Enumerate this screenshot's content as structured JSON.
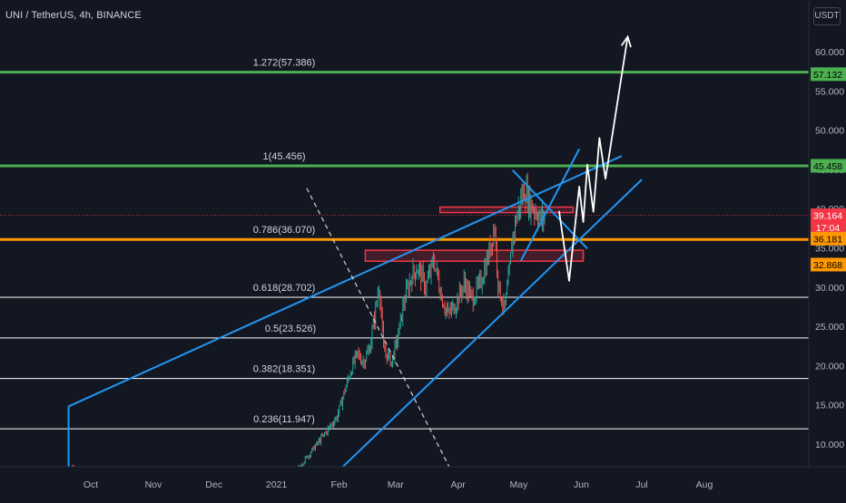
{
  "header": {
    "title": "UNI / TetherUS, 4h, BINANCE",
    "currency": "USDT"
  },
  "colors": {
    "background": "#131722",
    "text": "#d1d4dc",
    "axis_text": "#b2b5be",
    "up_candle": "#26a69a",
    "down_candle": "#ef5350",
    "trendline": "#2196f3",
    "fib_green": "#4caf50",
    "fib_orange": "#ff9800",
    "fib_white": "#ffffff",
    "zone_red": "#f23645"
  },
  "chart_data": {
    "type": "candlestick",
    "symbol": "UNI / TetherUS",
    "interval": "4h",
    "exchange": "BINANCE",
    "x_tick_labels": [
      "Oct",
      "Nov",
      "Dec",
      "2021",
      "Feb",
      "Mar",
      "Apr",
      "May",
      "Jun",
      "Jul",
      "Aug"
    ],
    "y_tick_labels": [
      "10.000",
      "15.000",
      "20.000",
      "25.000",
      "30.000",
      "35.000",
      "40.000",
      "45.000",
      "50.000",
      "55.000",
      "60.000"
    ],
    "y_ticks": [
      10,
      15,
      20,
      25,
      30,
      35,
      40,
      45,
      50,
      55,
      60
    ],
    "ylim": [
      6.4,
      63.5
    ],
    "fib_levels": [
      {
        "label": "1.272(57.386)",
        "value": 57.386,
        "color": "#4caf50"
      },
      {
        "label": "1(45.456)",
        "value": 45.456,
        "color": "#4caf50"
      },
      {
        "label": "0.786(36.070)",
        "value": 36.07,
        "color": "#ff9800"
      },
      {
        "label": "0.618(28.702)",
        "value": 28.702,
        "color": "#ffffff"
      },
      {
        "label": "0.5(23.526)",
        "value": 23.526,
        "color": "#ffffff"
      },
      {
        "label": "0.382(18.351)",
        "value": 18.351,
        "color": "#ffffff"
      },
      {
        "label": "0.236(11.947)",
        "value": 11.947,
        "color": "#ffffff"
      }
    ],
    "price_labels": [
      {
        "text": "57.132",
        "value": 57.132,
        "bg": "#4caf50",
        "fg": "#000000"
      },
      {
        "text": "45.458",
        "value": 45.458,
        "bg": "#4caf50",
        "fg": "#000000"
      },
      {
        "text": "39.164",
        "value": 39.164,
        "bg": "#f23645",
        "fg": "#ffffff"
      },
      {
        "text": "17:04",
        "value": 37.6,
        "bg": "#f23645",
        "fg": "#ffffff"
      },
      {
        "text": "36.181",
        "value": 36.181,
        "bg": "#ff9800",
        "fg": "#000000"
      },
      {
        "text": "32.868",
        "value": 32.868,
        "bg": "#ff9800",
        "fg": "#000000"
      }
    ],
    "current_price": 39.164,
    "trendline_points": [
      {
        "name": "channel-top",
        "points": [
          [
            "Sep 20",
            14.8
          ],
          [
            "Jun 21",
            46.7
          ]
        ]
      },
      {
        "name": "channel-bottom",
        "points": [
          [
            "Jan 31",
            6.4
          ],
          [
            "Jul 1",
            43.7
          ]
        ]
      },
      {
        "name": "wedge-upper",
        "points": [
          [
            "May 2",
            33.3
          ],
          [
            "May 31",
            47.6
          ]
        ]
      },
      {
        "name": "wedge-lower",
        "points": [
          [
            "Apr 28",
            44.9
          ],
          [
            "Jun 4",
            34.9
          ]
        ]
      },
      {
        "name": "vertical-start",
        "points": [
          [
            "Sep 20",
            6.4
          ],
          [
            "Sep 20",
            14.8
          ]
        ]
      }
    ],
    "dashed_line": [
      [
        "Jan 16",
        42.6
      ],
      [
        "Mar 29",
        6.4
      ]
    ],
    "zones": [
      {
        "name": "upper-resistance-zone",
        "from": "Mar 23",
        "to": "May 28",
        "low": 39.5,
        "high": 40.2
      },
      {
        "name": "lower-resistance-zone",
        "from": "Feb 14",
        "to": "Jun 2",
        "low": 33.3,
        "high": 34.7
      }
    ],
    "projection_path": [
      [
        "May 21",
        39.7
      ],
      [
        "May 26",
        30.8
      ],
      [
        "May 31",
        42.8
      ],
      [
        "Jun 2",
        38.3
      ],
      [
        "Jun 4",
        45.6
      ],
      [
        "Jun 7",
        39.6
      ],
      [
        "Jun 10",
        49.0
      ],
      [
        "Jun 13",
        43.8
      ],
      [
        "Jun 24",
        61.9
      ]
    ],
    "price_path": [
      [
        "Sep 22",
        7.2
      ],
      [
        "Sep 26",
        5.8
      ],
      [
        "Oct 5",
        4.2
      ],
      [
        "Nov 5",
        3.1
      ],
      [
        "Dec 5",
        3.0
      ],
      [
        "Jan 1",
        5.2
      ],
      [
        "Jan 12",
        7.0
      ],
      [
        "Jan 18",
        9.0
      ],
      [
        "Jan 24",
        11.0
      ],
      [
        "Jan 31",
        13.5
      ],
      [
        "Feb 4",
        17.0
      ],
      [
        "Feb 7",
        19.5
      ],
      [
        "Feb 10",
        21.5
      ],
      [
        "Feb 13",
        20.5
      ],
      [
        "Feb 16",
        22.0
      ],
      [
        "Feb 19",
        27.0
      ],
      [
        "Feb 21",
        30.5
      ],
      [
        "Feb 23",
        22.0
      ],
      [
        "Feb 27",
        20.5
      ],
      [
        "Mar 2",
        23.5
      ],
      [
        "Mar 5",
        28.0
      ],
      [
        "Mar 9",
        31.5
      ],
      [
        "Mar 12",
        32.5
      ],
      [
        "Mar 16",
        30.0
      ],
      [
        "Mar 20",
        33.5
      ],
      [
        "Mar 24",
        28.5
      ],
      [
        "Mar 27",
        26.5
      ],
      [
        "Mar 31",
        28.0
      ],
      [
        "Apr 4",
        30.5
      ],
      [
        "Apr 8",
        28.5
      ],
      [
        "Apr 12",
        30.5
      ],
      [
        "Apr 16",
        34.0
      ],
      [
        "Apr 19",
        38.0
      ],
      [
        "Apr 21",
        30.0
      ],
      [
        "Apr 24",
        27.0
      ],
      [
        "Apr 26",
        31.0
      ],
      [
        "Apr 28",
        36.5
      ],
      [
        "Apr 30",
        39.0
      ],
      [
        "May 2",
        41.0
      ],
      [
        "May 4",
        42.5
      ],
      [
        "May 6",
        41.0
      ],
      [
        "May 8",
        40.2
      ],
      [
        "May 10",
        39.5
      ],
      [
        "May 12",
        38.5
      ],
      [
        "May 14",
        39.164
      ]
    ]
  }
}
